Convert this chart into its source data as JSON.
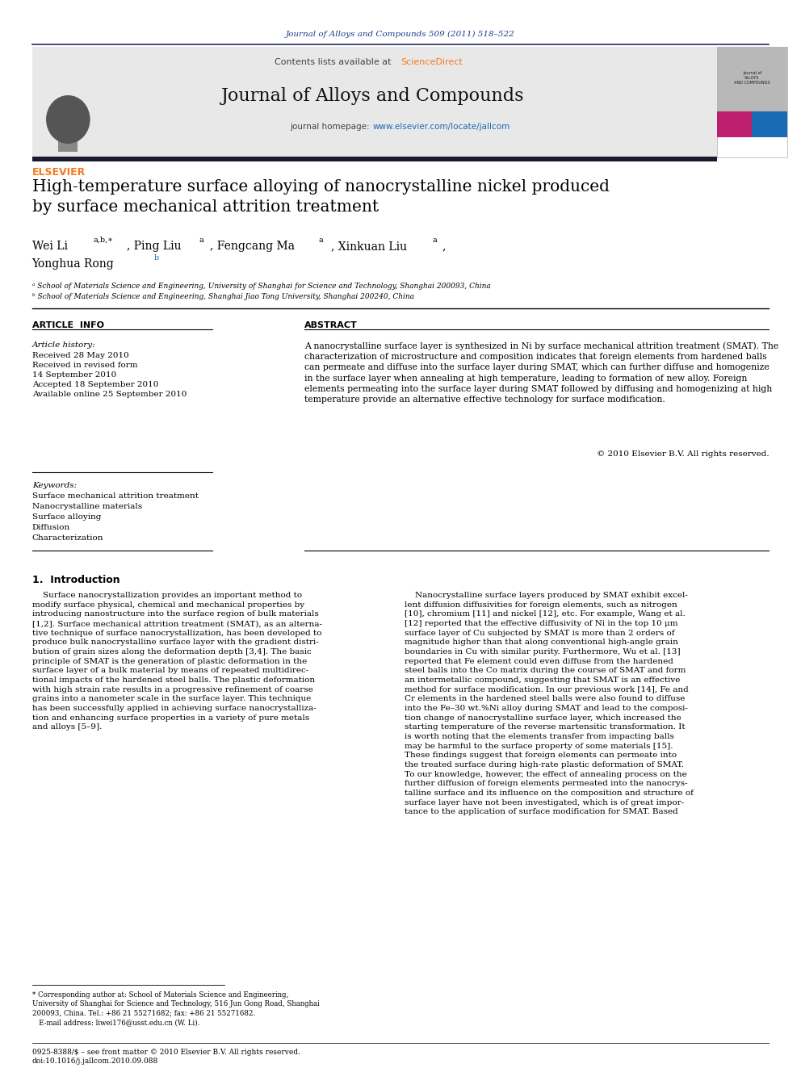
{
  "page_bg": "#ffffff",
  "top_journal_ref": "Journal of Alloys and Compounds 509 (2011) 518–522",
  "top_ref_color": "#1a3a8c",
  "header_bg": "#e8e8e8",
  "header_contents": "Contents lists available at",
  "header_sciencedirect_color": "#f47920",
  "journal_name": "Journal of Alloys and Compounds",
  "journal_homepage_color": "#1a6bb5",
  "paper_title": "High-temperature surface alloying of nanocrystalline nickel produced\nby surface mechanical attrition treatment",
  "affil_a": "ᵃ School of Materials Science and Engineering, University of Shanghai for Science and Technology, Shanghai 200093, China",
  "affil_b": "ᵇ School of Materials Science and Engineering, Shanghai Jiao Tong University, Shanghai 200240, China",
  "article_info_label": "ARTICLE  INFO",
  "abstract_label": "ABSTRACT",
  "article_history_label": "Article history:",
  "received_1": "Received 28 May 2010",
  "received_2": "Received in revised form",
  "received_date": "14 September 2010",
  "accepted": "Accepted 18 September 2010",
  "available": "Available online 25 September 2010",
  "keywords_label": "Keywords:",
  "keyword_1": "Surface mechanical attrition treatment",
  "keyword_2": "Nanocrystalline materials",
  "keyword_3": "Surface alloying",
  "keyword_4": "Diffusion",
  "keyword_5": "Characterization",
  "abstract_text": "A nanocrystalline surface layer is synthesized in Ni by surface mechanical attrition treatment (SMAT). The\ncharacterization of microstructure and composition indicates that foreign elements from hardened balls\ncan permeate and diffuse into the surface layer during SMAT, which can further diffuse and homogenize\nin the surface layer when annealing at high temperature, leading to formation of new alloy. Foreign\nelements permeating into the surface layer during SMAT followed by diffusing and homogenizing at high\ntemperature provide an alternative effective technology for surface modification.",
  "copyright": "© 2010 Elsevier B.V. All rights reserved.",
  "intro_heading": "1.  Introduction",
  "intro_left": "    Surface nanocrystallization provides an important method to\nmodify surface physical, chemical and mechanical properties by\nintroducing nanostructure into the surface region of bulk materials\n[1,2]. Surface mechanical attrition treatment (SMAT), as an alterna-\ntive technique of surface nanocrystallization, has been developed to\nproduce bulk nanocrystalline surface layer with the gradient distri-\nbution of grain sizes along the deformation depth [3,4]. The basic\nprinciple of SMAT is the generation of plastic deformation in the\nsurface layer of a bulk material by means of repeated multidirec-\ntional impacts of the hardened steel balls. The plastic deformation\nwith high strain rate results in a progressive refinement of coarse\ngrains into a nanometer scale in the surface layer. This technique\nhas been successfully applied in achieving surface nanocrystalliza-\ntion and enhancing surface properties in a variety of pure metals\nand alloys [5–9].",
  "intro_right": "    Nanocrystalline surface layers produced by SMAT exhibit excel-\nlent diffusion diffusivities for foreign elements, such as nitrogen\n[10], chromium [11] and nickel [12], etc. For example, Wang et al.\n[12] reported that the effective diffusivity of Ni in the top 10 μm\nsurface layer of Cu subjected by SMAT is more than 2 orders of\nmagnitude higher than that along conventional high-angle grain\nboundaries in Cu with similar purity. Furthermore, Wu et al. [13]\nreported that Fe element could even diffuse from the hardened\nsteel balls into the Co matrix during the course of SMAT and form\nan intermetallic compound, suggesting that SMAT is an effective\nmethod for surface modification. In our previous work [14], Fe and\nCr elements in the hardened steel balls were also found to diffuse\ninto the Fe–30 wt.%Ni alloy during SMAT and lead to the composi-\ntion change of nanocrystalline surface layer, which increased the\nstarting temperature of the reverse martensitic transformation. It\nis worth noting that the elements transfer from impacting balls\nmay be harmful to the surface property of some materials [15].\nThese findings suggest that foreign elements can permeate into\nthe treated surface during high-rate plastic deformation of SMAT.\nTo our knowledge, however, the effect of annealing process on the\nfurther diffusion of foreign elements permeated into the nanocrys-\ntalline surface and its influence on the composition and structure of\nsurface layer have not been investigated, which is of great impor-\ntance to the application of surface modification for SMAT. Based",
  "footnote_star": "* Corresponding author at: School of Materials Science and Engineering,\nUniversity of Shanghai for Science and Technology, 516 Jun Gong Road, Shanghai\n200093, China. Tel.: +86 21 55271682; fax: +86 21 55271682.\n   E-mail address: liwei176@usst.edu.cn (W. Li).",
  "bottom_ref": "0925-8388/$ – see front matter © 2010 Elsevier B.V. All rights reserved.\ndoi:10.1016/j.jallcom.2010.09.088",
  "link_color": "#1a6bb5",
  "elsevier_orange": "#f47920"
}
